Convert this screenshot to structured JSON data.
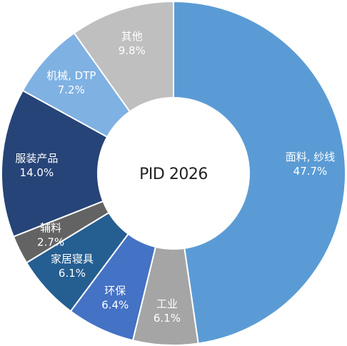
{
  "chart_data": {
    "type": "pie",
    "title": "PID 2026",
    "slices": [
      {
        "name": "面料, 纱线",
        "value": 47.7,
        "label": "47.7%",
        "color": "#5b9bd5"
      },
      {
        "name": "工业",
        "value": 6.1,
        "label": "6.1%",
        "color": "#a5a5a5"
      },
      {
        "name": "环保",
        "value": 6.4,
        "label": "6.4%",
        "color": "#4472c4"
      },
      {
        "name": "家居寝具",
        "value": 6.1,
        "label": "6.1%",
        "color": "#255e91"
      },
      {
        "name": "辅料",
        "value": 2.7,
        "label": "2.7%",
        "color": "#636363"
      },
      {
        "name": "服装产品",
        "value": 14.0,
        "label": "14.0%",
        "color": "#264478"
      },
      {
        "name": "机械, DTP",
        "value": 7.2,
        "label": "7.2%",
        "color": "#7fb1e3"
      },
      {
        "name": "其他",
        "value": 9.8,
        "label": "9.8%",
        "color": "#bfbfbf"
      }
    ]
  }
}
